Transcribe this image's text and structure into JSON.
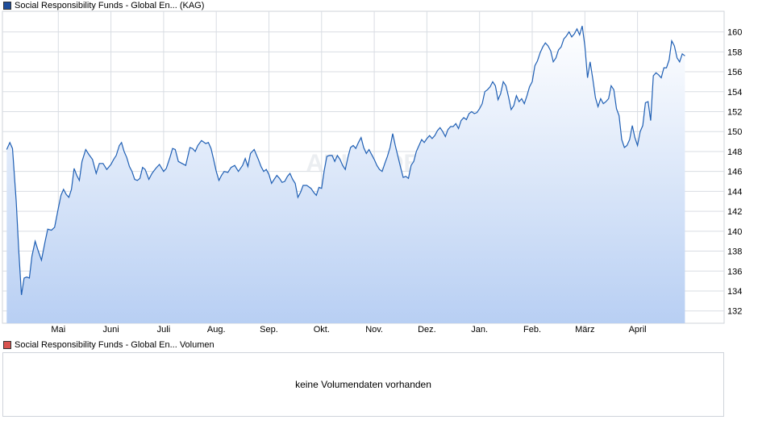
{
  "legend": {
    "price_label": "Social Responsibility Funds - Global En... (KAG)",
    "price_color": "#1f4e9b",
    "volume_label": "Social Responsibility Funds - Global En... Volumen",
    "volume_color": "#d9534f"
  },
  "watermark": "ARIVA.DE",
  "volume": {
    "message": "keine Volumendaten vorhanden"
  },
  "chart_data": {
    "type": "area",
    "title": "",
    "xlabel": "",
    "ylabel": "",
    "ylim": [
      130.8,
      161.6
    ],
    "yticks": [
      132,
      134,
      136,
      138,
      140,
      142,
      144,
      146,
      148,
      150,
      152,
      154,
      156,
      158,
      160
    ],
    "xlim": [
      0,
      12.55
    ],
    "xticks": [
      {
        "label": "Mai",
        "x": 1
      },
      {
        "label": "Juni",
        "x": 2
      },
      {
        "label": "Juli",
        "x": 3
      },
      {
        "label": "Aug.",
        "x": 4
      },
      {
        "label": "Sep.",
        "x": 5
      },
      {
        "label": "Okt.",
        "x": 6
      },
      {
        "label": "Nov.",
        "x": 7
      },
      {
        "label": "Dez.",
        "x": 8
      },
      {
        "label": "Jan.",
        "x": 9
      },
      {
        "label": "Feb.",
        "x": 10
      },
      {
        "label": "März",
        "x": 11
      },
      {
        "label": "April",
        "x": 12
      }
    ],
    "grid": true,
    "line_color": "#1f5fb4",
    "series": [
      {
        "points": [
          [
            0.02,
            148.2
          ],
          [
            0.08,
            148.9
          ],
          [
            0.13,
            148.3
          ],
          [
            0.2,
            143
          ],
          [
            0.25,
            138
          ],
          [
            0.3,
            133.6
          ],
          [
            0.35,
            135.3
          ],
          [
            0.4,
            135.4
          ],
          [
            0.45,
            135.3
          ],
          [
            0.5,
            137.5
          ],
          [
            0.56,
            139.0
          ],
          [
            0.62,
            138.0
          ],
          [
            0.68,
            137.1
          ],
          [
            0.75,
            139.0
          ],
          [
            0.8,
            140.2
          ],
          [
            0.87,
            140.1
          ],
          [
            0.93,
            140.4
          ],
          [
            1.0,
            142.3
          ],
          [
            1.05,
            143.6
          ],
          [
            1.1,
            144.2
          ],
          [
            1.15,
            143.7
          ],
          [
            1.2,
            143.4
          ],
          [
            1.25,
            144.2
          ],
          [
            1.3,
            146.3
          ],
          [
            1.35,
            145.6
          ],
          [
            1.4,
            145.1
          ],
          [
            1.45,
            147.0
          ],
          [
            1.52,
            148.2
          ],
          [
            1.58,
            147.7
          ],
          [
            1.65,
            147.2
          ],
          [
            1.72,
            145.8
          ],
          [
            1.78,
            146.8
          ],
          [
            1.85,
            146.8
          ],
          [
            1.92,
            146.2
          ],
          [
            2.0,
            146.7
          ],
          [
            2.05,
            147.2
          ],
          [
            2.1,
            147.6
          ],
          [
            2.16,
            148.6
          ],
          [
            2.2,
            148.9
          ],
          [
            2.25,
            148.0
          ],
          [
            2.3,
            147.4
          ],
          [
            2.35,
            146.5
          ],
          [
            2.4,
            146.0
          ],
          [
            2.45,
            145.2
          ],
          [
            2.5,
            145.1
          ],
          [
            2.55,
            145.3
          ],
          [
            2.6,
            146.4
          ],
          [
            2.65,
            146.2
          ],
          [
            2.72,
            145.2
          ],
          [
            2.78,
            145.8
          ],
          [
            2.85,
            146.3
          ],
          [
            2.92,
            146.7
          ],
          [
            3.0,
            146.0
          ],
          [
            3.05,
            146.3
          ],
          [
            3.12,
            147.4
          ],
          [
            3.17,
            148.3
          ],
          [
            3.22,
            148.2
          ],
          [
            3.28,
            147.0
          ],
          [
            3.35,
            146.8
          ],
          [
            3.42,
            146.6
          ],
          [
            3.5,
            148.4
          ],
          [
            3.55,
            148.3
          ],
          [
            3.6,
            148.0
          ],
          [
            3.65,
            148.6
          ],
          [
            3.72,
            149.1
          ],
          [
            3.8,
            148.8
          ],
          [
            3.85,
            148.9
          ],
          [
            3.9,
            148.3
          ],
          [
            3.95,
            147.2
          ],
          [
            4.0,
            146.0
          ],
          [
            4.05,
            145.1
          ],
          [
            4.1,
            145.6
          ],
          [
            4.15,
            146.0
          ],
          [
            4.22,
            145.9
          ],
          [
            4.28,
            146.4
          ],
          [
            4.35,
            146.6
          ],
          [
            4.42,
            146.0
          ],
          [
            4.5,
            146.6
          ],
          [
            4.55,
            147.3
          ],
          [
            4.6,
            146.5
          ],
          [
            4.65,
            147.8
          ],
          [
            4.72,
            148.2
          ],
          [
            4.8,
            147.2
          ],
          [
            4.85,
            146.5
          ],
          [
            4.9,
            146.0
          ],
          [
            4.95,
            146.2
          ],
          [
            5.0,
            145.7
          ],
          [
            5.05,
            144.8
          ],
          [
            5.1,
            145.2
          ],
          [
            5.15,
            145.6
          ],
          [
            5.2,
            145.3
          ],
          [
            5.25,
            144.9
          ],
          [
            5.3,
            145.0
          ],
          [
            5.35,
            145.5
          ],
          [
            5.4,
            145.8
          ],
          [
            5.45,
            145.2
          ],
          [
            5.5,
            144.8
          ],
          [
            5.55,
            143.4
          ],
          [
            5.6,
            143.9
          ],
          [
            5.65,
            144.6
          ],
          [
            5.72,
            144.6
          ],
          [
            5.8,
            144.3
          ],
          [
            5.85,
            143.9
          ],
          [
            5.9,
            143.6
          ],
          [
            5.95,
            144.4
          ],
          [
            6.0,
            144.3
          ],
          [
            6.05,
            146.1
          ],
          [
            6.1,
            147.5
          ],
          [
            6.15,
            147.6
          ],
          [
            6.2,
            147.6
          ],
          [
            6.25,
            147.0
          ],
          [
            6.3,
            147.6
          ],
          [
            6.35,
            147.2
          ],
          [
            6.4,
            146.6
          ],
          [
            6.45,
            146.2
          ],
          [
            6.5,
            147.4
          ],
          [
            6.55,
            148.4
          ],
          [
            6.6,
            148.6
          ],
          [
            6.65,
            148.3
          ],
          [
            6.7,
            148.9
          ],
          [
            6.75,
            149.4
          ],
          [
            6.8,
            148.4
          ],
          [
            6.85,
            147.8
          ],
          [
            6.9,
            148.2
          ],
          [
            6.95,
            147.7
          ],
          [
            7.0,
            147.2
          ],
          [
            7.05,
            146.6
          ],
          [
            7.1,
            146.2
          ],
          [
            7.15,
            146.0
          ],
          [
            7.2,
            146.8
          ],
          [
            7.25,
            147.5
          ],
          [
            7.3,
            148.4
          ],
          [
            7.35,
            149.8
          ],
          [
            7.4,
            148.6
          ],
          [
            7.45,
            147.5
          ],
          [
            7.5,
            146.4
          ],
          [
            7.55,
            145.4
          ],
          [
            7.6,
            145.5
          ],
          [
            7.65,
            145.3
          ],
          [
            7.7,
            146.6
          ],
          [
            7.75,
            147.0
          ],
          [
            7.8,
            148.0
          ],
          [
            7.85,
            148.6
          ],
          [
            7.9,
            149.2
          ],
          [
            7.95,
            148.9
          ],
          [
            8.0,
            149.3
          ],
          [
            8.05,
            149.6
          ],
          [
            8.1,
            149.3
          ],
          [
            8.15,
            149.6
          ],
          [
            8.2,
            150.1
          ],
          [
            8.25,
            150.4
          ],
          [
            8.3,
            150.0
          ],
          [
            8.35,
            149.5
          ],
          [
            8.4,
            150.2
          ],
          [
            8.45,
            150.5
          ],
          [
            8.5,
            150.5
          ],
          [
            8.55,
            150.8
          ],
          [
            8.6,
            150.3
          ],
          [
            8.65,
            151.1
          ],
          [
            8.7,
            151.4
          ],
          [
            8.75,
            151.2
          ],
          [
            8.8,
            151.8
          ],
          [
            8.85,
            152.0
          ],
          [
            8.9,
            151.8
          ],
          [
            8.95,
            151.9
          ],
          [
            9.0,
            152.3
          ],
          [
            9.05,
            152.8
          ],
          [
            9.1,
            154.0
          ],
          [
            9.15,
            154.2
          ],
          [
            9.2,
            154.5
          ],
          [
            9.25,
            155.0
          ],
          [
            9.3,
            154.6
          ],
          [
            9.35,
            153.2
          ],
          [
            9.4,
            153.8
          ],
          [
            9.45,
            155.0
          ],
          [
            9.5,
            154.6
          ],
          [
            9.55,
            153.5
          ],
          [
            9.6,
            152.2
          ],
          [
            9.65,
            152.6
          ],
          [
            9.7,
            153.6
          ],
          [
            9.75,
            153.0
          ],
          [
            9.8,
            153.3
          ],
          [
            9.85,
            152.8
          ],
          [
            9.9,
            153.6
          ],
          [
            9.95,
            154.5
          ],
          [
            10.0,
            155.0
          ],
          [
            10.05,
            156.6
          ],
          [
            10.1,
            157.1
          ],
          [
            10.15,
            157.9
          ],
          [
            10.2,
            158.5
          ],
          [
            10.25,
            158.9
          ],
          [
            10.3,
            158.6
          ],
          [
            10.35,
            158.1
          ],
          [
            10.4,
            157.0
          ],
          [
            10.45,
            157.4
          ],
          [
            10.5,
            158.2
          ],
          [
            10.55,
            158.5
          ],
          [
            10.6,
            159.3
          ],
          [
            10.65,
            159.6
          ],
          [
            10.7,
            160.0
          ],
          [
            10.75,
            159.5
          ],
          [
            10.8,
            159.8
          ],
          [
            10.85,
            160.3
          ],
          [
            10.9,
            159.7
          ],
          [
            10.95,
            160.6
          ],
          [
            11.0,
            158.6
          ],
          [
            11.05,
            155.4
          ],
          [
            11.1,
            157.0
          ],
          [
            11.15,
            155.3
          ],
          [
            11.2,
            153.4
          ],
          [
            11.25,
            152.5
          ],
          [
            11.3,
            153.3
          ],
          [
            11.35,
            152.8
          ],
          [
            11.4,
            153.0
          ],
          [
            11.45,
            153.3
          ],
          [
            11.5,
            154.6
          ],
          [
            11.55,
            154.2
          ],
          [
            11.6,
            152.3
          ],
          [
            11.65,
            151.6
          ],
          [
            11.7,
            149.2
          ],
          [
            11.75,
            148.4
          ],
          [
            11.8,
            148.6
          ],
          [
            11.85,
            149.2
          ],
          [
            11.9,
            150.6
          ],
          [
            11.95,
            149.4
          ],
          [
            12.0,
            148.6
          ],
          [
            12.05,
            150.0
          ],
          [
            12.1,
            150.6
          ],
          [
            12.15,
            152.9
          ],
          [
            12.2,
            153.0
          ],
          [
            12.25,
            151.1
          ],
          [
            12.3,
            155.6
          ],
          [
            12.35,
            155.9
          ],
          [
            12.4,
            155.7
          ],
          [
            12.45,
            155.4
          ],
          [
            12.5,
            156.4
          ],
          [
            12.55,
            156.4
          ],
          [
            12.6,
            157.2
          ],
          [
            12.65,
            159.1
          ],
          [
            12.7,
            158.6
          ],
          [
            12.75,
            157.4
          ],
          [
            12.8,
            157.0
          ],
          [
            12.85,
            157.8
          ],
          [
            12.9,
            157.6
          ]
        ]
      }
    ]
  }
}
